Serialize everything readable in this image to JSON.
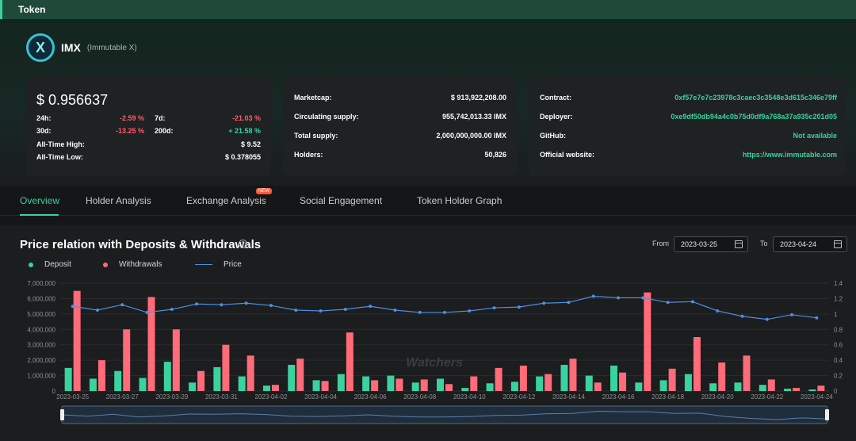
{
  "header": {
    "section_title": "Token"
  },
  "token": {
    "symbol": "IMX",
    "name": "(Immutable X)",
    "logo_letter": "X"
  },
  "price_card": {
    "price": "$ 0.956637",
    "rows": [
      {
        "label": "24h:",
        "value": "-2.59 %"
      },
      {
        "label": "7d:",
        "value": "-21.03 %"
      },
      {
        "label": "30d:",
        "value": "-13.25 %"
      },
      {
        "label": "200d:",
        "value": "+ 21.58 %"
      },
      {
        "label": "All-Time High:",
        "value": "$ 9.52"
      },
      {
        "label": "All-Time Low:",
        "value": "$ 0.378055"
      }
    ]
  },
  "supply_card": {
    "rows": [
      {
        "label": "Marketcap:",
        "value": "$ 913,922,208.00"
      },
      {
        "label": "Circulating supply:",
        "value": "955,742,013.33 IMX"
      },
      {
        "label": "Total supply:",
        "value": "2,000,000,000.00 IMX"
      },
      {
        "label": "Holders:",
        "value": "50,826"
      }
    ]
  },
  "info_card": {
    "rows": [
      {
        "label": "Contract:",
        "value": "0xf57e7e7c23978c3caec3c3548e3d615c346e79ff"
      },
      {
        "label": "Deployer:",
        "value": "0xe9df50db94a4c0b75d0df9a768a37a935c201d05"
      },
      {
        "label": "GitHub:",
        "value": "Not available"
      },
      {
        "label": "Official website:",
        "value": "https://www.immutable.com"
      }
    ]
  },
  "tabs": [
    {
      "label": "Overview"
    },
    {
      "label": "Holder Analysis"
    },
    {
      "label": "Exchange Analysis"
    },
    {
      "label": "Social Engagement"
    },
    {
      "label": "Token Holder Graph"
    }
  ],
  "new_badge": "NEW",
  "panel": {
    "title": "Price relation with Deposits & Withdrawals",
    "from_label": "From",
    "from_value": "2023-03-25",
    "to_label": "To",
    "to_value": "2023-04-24",
    "watermark": "Watchers"
  },
  "colors": {
    "deposit": "#3ad29f",
    "withdrawals": "#ff6b78",
    "price": "#4f8ee0",
    "accent": "#3ad29f"
  },
  "chart_data": {
    "type": "bar",
    "title": "Price relation with Deposits & Withdrawals",
    "x": [
      "2023-03-25",
      "2023-03-26",
      "2023-03-27",
      "2023-03-28",
      "2023-03-29",
      "2023-03-30",
      "2023-03-31",
      "2023-04-01",
      "2023-04-02",
      "2023-04-03",
      "2023-04-04",
      "2023-04-05",
      "2023-04-06",
      "2023-04-07",
      "2023-04-08",
      "2023-04-09",
      "2023-04-10",
      "2023-04-11",
      "2023-04-12",
      "2023-04-13",
      "2023-04-14",
      "2023-04-15",
      "2023-04-16",
      "2023-04-17",
      "2023-04-18",
      "2023-04-19",
      "2023-04-20",
      "2023-04-21",
      "2023-04-22",
      "2023-04-23",
      "2023-04-24"
    ],
    "x_tick_labels": [
      "2023-03-25",
      "2023-03-27",
      "2023-03-29",
      "2023-03-31",
      "2023-04-02",
      "2023-04-04",
      "2023-04-06",
      "2023-04-08",
      "2023-04-10",
      "2023-04-12",
      "2023-04-14",
      "2023-04-16",
      "2023-04-18",
      "2023-04-20",
      "2023-04-22",
      "2023-04-24"
    ],
    "series": [
      {
        "name": "Deposit",
        "axis": "left",
        "values": [
          1500000,
          800000,
          1300000,
          850000,
          1900000,
          550000,
          1550000,
          950000,
          350000,
          1700000,
          700000,
          1100000,
          950000,
          1000000,
          550000,
          800000,
          200000,
          500000,
          600000,
          950000,
          1700000,
          1000000,
          1650000,
          550000,
          700000,
          1100000,
          500000,
          550000,
          400000,
          150000,
          100000
        ]
      },
      {
        "name": "Withdrawals",
        "axis": "left",
        "values": [
          6500000,
          2000000,
          4000000,
          6100000,
          4000000,
          1300000,
          3000000,
          2300000,
          400000,
          2100000,
          650000,
          3800000,
          700000,
          800000,
          750000,
          450000,
          950000,
          1500000,
          1650000,
          1100000,
          2100000,
          550000,
          1200000,
          6400000,
          1450000,
          3500000,
          1850000,
          2300000,
          750000,
          200000,
          350000
        ]
      },
      {
        "name": "Price",
        "type": "line",
        "axis": "right",
        "values": [
          1.1,
          1.05,
          1.12,
          1.02,
          1.06,
          1.13,
          1.12,
          1.14,
          1.11,
          1.05,
          1.04,
          1.06,
          1.1,
          1.05,
          1.02,
          1.02,
          1.04,
          1.08,
          1.09,
          1.14,
          1.15,
          1.23,
          1.21,
          1.21,
          1.15,
          1.16,
          1.04,
          0.97,
          0.93,
          0.99,
          0.95
        ]
      }
    ],
    "y_left": {
      "ticks": [
        "0",
        "1,000,000",
        "2,000,000",
        "3,000,000",
        "4,000,000",
        "5,000,000",
        "6,000,000",
        "7,000,000"
      ],
      "min": 0,
      "max": 7000000
    },
    "y_right": {
      "ticks": [
        "0",
        "0.2",
        "0.4",
        "0.6",
        "0.8",
        "1",
        "1.2",
        "1.4"
      ],
      "min": 0,
      "max": 1.4
    },
    "legend_position": "top-left",
    "grid": true
  }
}
